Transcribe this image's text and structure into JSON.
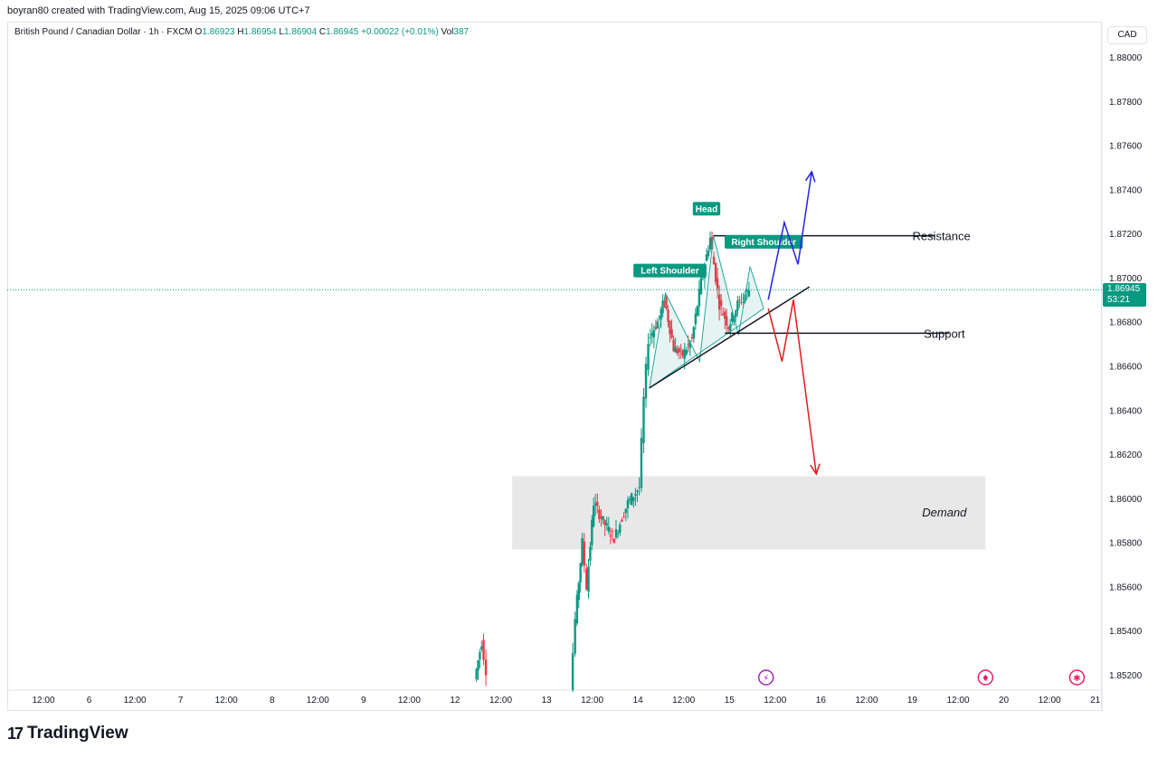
{
  "header": {
    "attribution": "boyran80 created with TradingView.com, Aug 15, 2025 09:06 UTC+7"
  },
  "legend": {
    "symbol": "British Pound / Canadian Dollar · 1h · FXCM",
    "open_label": "O",
    "open": "1.86923",
    "high_label": "H",
    "high": "1.86954",
    "low_label": "L",
    "low": "1.86904",
    "close_label": "C",
    "close": "1.86945",
    "change": "+0.00022 (+0.01%)",
    "vol_label": "Vol",
    "vol": "387"
  },
  "price_axis": {
    "currency": "CAD",
    "current_price": "1.86945",
    "countdown": "53:21"
  },
  "chart_data": {
    "type": "line",
    "title": "British Pound / Canadian Dollar · 1h · FXCM",
    "ylim": [
      1.8512,
      1.8814
    ],
    "y_ticks": [
      "1.88000",
      "1.87800",
      "1.87600",
      "1.87400",
      "1.87200",
      "1.87000",
      "1.86800",
      "1.86600",
      "1.86400",
      "1.86200",
      "1.86000",
      "1.85800",
      "1.85600",
      "1.85400",
      "1.85200"
    ],
    "x_ticks": [
      "12:00",
      "6",
      "12:00",
      "7",
      "12:00",
      "8",
      "12:00",
      "9",
      "12:00",
      "12",
      "12:00",
      "13",
      "12:00",
      "14",
      "12:00",
      "15",
      "12:00",
      "16",
      "12:00",
      "19",
      "12:00",
      "20",
      "12:00",
      "21"
    ],
    "current_price": 1.86945,
    "price_path": [
      {
        "t": 9.45,
        "p": 1.8518
      },
      {
        "t": 9.6,
        "p": 1.8535
      },
      {
        "t": 9.7,
        "p": 1.8522
      },
      {
        "t": 11.55,
        "p": 1.8515
      },
      {
        "t": 11.65,
        "p": 1.8545
      },
      {
        "t": 11.8,
        "p": 1.858
      },
      {
        "t": 11.9,
        "p": 1.856
      },
      {
        "t": 12.05,
        "p": 1.8598
      },
      {
        "t": 12.3,
        "p": 1.8588
      },
      {
        "t": 12.5,
        "p": 1.8582
      },
      {
        "t": 12.8,
        "p": 1.8598
      },
      {
        "t": 13.05,
        "p": 1.8605
      },
      {
        "t": 13.15,
        "p": 1.8645
      },
      {
        "t": 13.25,
        "p": 1.8672
      },
      {
        "t": 13.45,
        "p": 1.868
      },
      {
        "t": 13.6,
        "p": 1.869
      },
      {
        "t": 13.8,
        "p": 1.8668
      },
      {
        "t": 14.0,
        "p": 1.8665
      },
      {
        "t": 14.2,
        "p": 1.8672
      },
      {
        "t": 14.4,
        "p": 1.8698
      },
      {
        "t": 14.6,
        "p": 1.8718
      },
      {
        "t": 14.8,
        "p": 1.8688
      },
      {
        "t": 15.0,
        "p": 1.8678
      },
      {
        "t": 15.2,
        "p": 1.8688
      },
      {
        "t": 15.45,
        "p": 1.86945
      }
    ],
    "annotations": {
      "left_shoulder": "Left Shoulder",
      "head": "Head",
      "right_shoulder": "Right Shoulder",
      "resistance": "Resistance",
      "support": "Support",
      "demand": "Demand",
      "resistance_level": 1.8719,
      "support_level": 1.86748,
      "demand_zone": [
        1.85768,
        1.861
      ]
    },
    "bullish_projection": [
      {
        "t": 15.85,
        "p": 1.869
      },
      {
        "t": 16.2,
        "p": 1.8725
      },
      {
        "t": 16.5,
        "p": 1.8706
      },
      {
        "t": 16.8,
        "p": 1.8748
      }
    ],
    "bearish_projection": [
      {
        "t": 15.85,
        "p": 1.8686
      },
      {
        "t": 16.15,
        "p": 1.8662
      },
      {
        "t": 16.4,
        "p": 1.869
      },
      {
        "t": 16.9,
        "p": 1.8611
      }
    ],
    "colors": {
      "up": "#089981",
      "down": "#f23645",
      "pattern": "#26a69a",
      "bullish": "#2422e6",
      "bearish": "#e51a1a",
      "demand": "#e8e8e8"
    }
  },
  "footer": {
    "brand": "TradingView"
  }
}
